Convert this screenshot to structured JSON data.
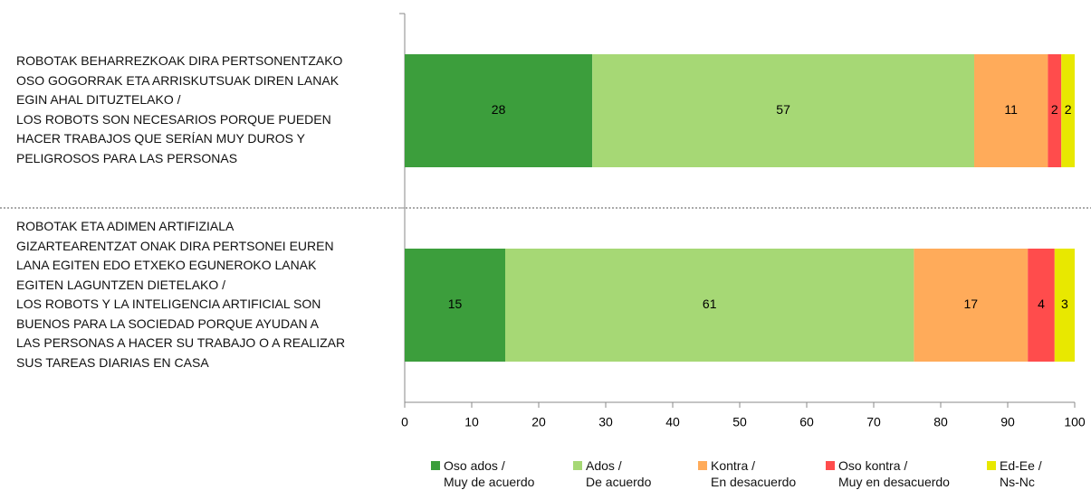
{
  "chart_data": {
    "type": "stacked-barh",
    "categories": [
      "ROBOTAK BEHARREZKOAK DIRA PERTSONENTZAKO\nOSO GOGORRAK ETA ARRISKUTSUAK DIREN LANAK\nEGIN AHAL DITUZTELAKO /\nLOS ROBOTS SON NECESARIOS PORQUE PUEDEN\nHACER TRABAJOS QUE SERÍAN MUY DUROS Y\nPELIGROSOS PARA LAS PERSONAS",
      "ROBOTAK ETA ADIMEN ARTIFIZIALA\nGIZARTEARENTZAT ONAK DIRA PERTSONEI EUREN\nLANA EGITEN EDO ETXEKO EGUNEROKO LANAK\nEGITEN LAGUNTZEN DIETELAKO /\nLOS ROBOTS Y LA INTELIGENCIA ARTIFICIAL SON\nBUENOS PARA LA SOCIEDAD PORQUE AYUDAN A\nLAS PERSONAS A HACER SU TRABAJO O A REALIZAR\nSUS TAREAS DIARIAS EN CASA"
    ],
    "series": [
      {
        "name": "Oso ados /\nMuy de acuerdo",
        "color": "#3c9e3c",
        "values": [
          28,
          15
        ]
      },
      {
        "name": "Ados /\nDe acuerdo",
        "color": "#a6d875",
        "values": [
          57,
          61
        ]
      },
      {
        "name": "Kontra /\nEn desacuerdo",
        "color": "#ffab5a",
        "values": [
          11,
          17
        ]
      },
      {
        "name": "Oso kontra /\nMuy en desacuerdo",
        "color": "#ff4c4c",
        "values": [
          2,
          4
        ]
      },
      {
        "name": "Ed-Ee /\nNs-Nc",
        "color": "#e8e800",
        "values": [
          2,
          3
        ]
      }
    ],
    "xlim": [
      0,
      100
    ],
    "xticks": [
      0,
      10,
      20,
      30,
      40,
      50,
      60,
      70,
      80,
      90,
      100
    ]
  }
}
